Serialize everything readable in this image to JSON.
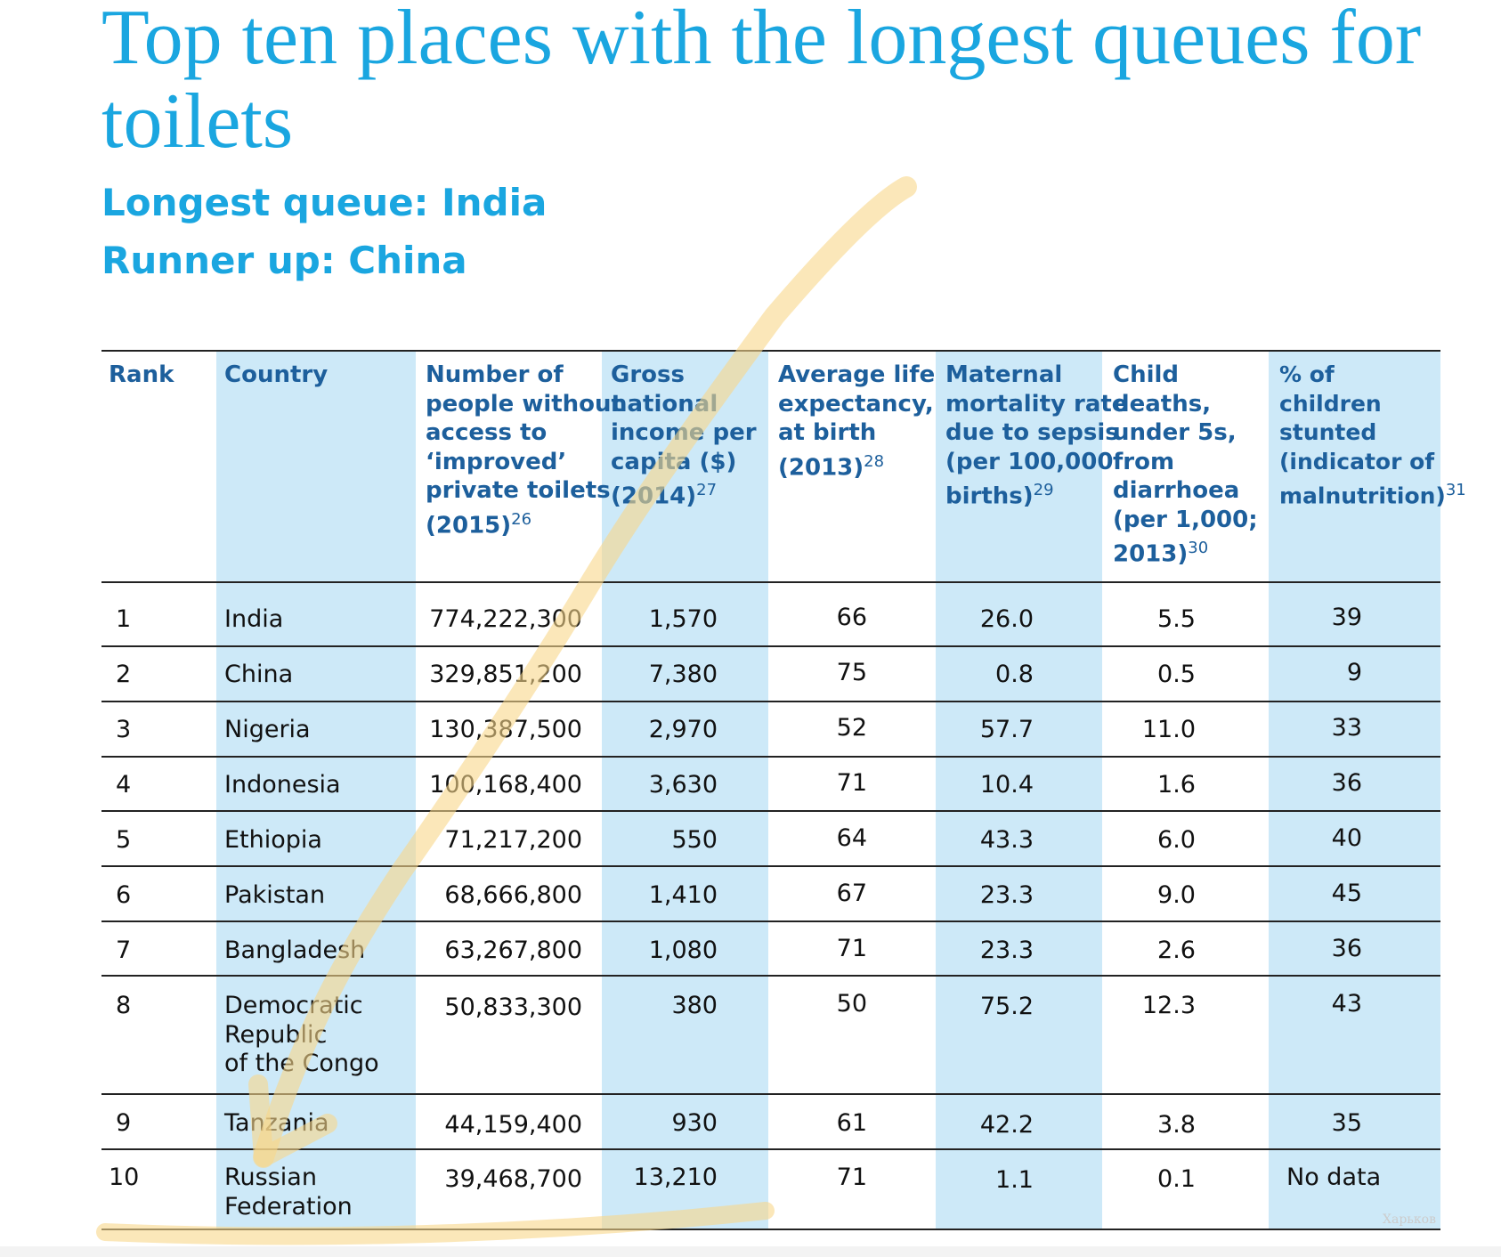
{
  "title": "Top ten places with the longest queues for toilets",
  "subtitle_1": "Longest queue: India",
  "subtitle_2": "Runner up: China",
  "table": {
    "headers": [
      {
        "text": "Rank",
        "sup": ""
      },
      {
        "text": "Country",
        "sup": ""
      },
      {
        "text": "Number of\npeople without\naccess to\n‘improved’\nprivate toilets\n(2015)",
        "sup": "26"
      },
      {
        "text": "Gross\nnational\nincome per\ncapita ($)\n(2014)",
        "sup": "27"
      },
      {
        "text": "Average life\nexpectancy,\nat birth\n(2013)",
        "sup": "28"
      },
      {
        "text": "Maternal\nmortality rate\ndue to sepsis\n(per 100,000\nbirths)",
        "sup": "29"
      },
      {
        "text": "Child\ndeaths,\nunder 5s,\nfrom\ndiarrhoea\n(per 1,000;\n2013)",
        "sup": "30"
      },
      {
        "text": "% of\nchildren\nstunted\n(indicator of\nmalnutrition)",
        "sup": "31"
      }
    ],
    "rows": [
      [
        "1",
        "India",
        "774,222,300",
        "1,570",
        "66",
        "26.0",
        "5.5",
        "39"
      ],
      [
        "2",
        "China",
        "329,851,200",
        "7,380",
        "75",
        "0.8",
        "0.5",
        "9"
      ],
      [
        "3",
        "Nigeria",
        "130,387,500",
        "2,970",
        "52",
        "57.7",
        "11.0",
        "33"
      ],
      [
        "4",
        "Indonesia",
        "100,168,400",
        "3,630",
        "71",
        "10.4",
        "1.6",
        "36"
      ],
      [
        "5",
        "Ethiopia",
        "71,217,200",
        "550",
        "64",
        "43.3",
        "6.0",
        "40"
      ],
      [
        "6",
        "Pakistan",
        "68,666,800",
        "1,410",
        "67",
        "23.3",
        "9.0",
        "45"
      ],
      [
        "7",
        "Bangladesh",
        "63,267,800",
        "1,080",
        "71",
        "23.3",
        "2.6",
        "36"
      ],
      [
        "8",
        "Democratic\nRepublic\nof the Congo",
        "50,833,300",
        "380",
        "50",
        "75.2",
        "12.3",
        "43"
      ],
      [
        "9",
        "Tanzania",
        "44,159,400",
        "930",
        "61",
        "42.2",
        "3.8",
        "35"
      ],
      [
        "10",
        "Russian\nFederation",
        "39,468,700",
        "13,210",
        "71",
        "1.1",
        "0.1",
        "No data"
      ]
    ]
  },
  "watermark": "Харьков",
  "colors": {
    "title": "#1aa6e0",
    "header_text": "#1d5f9c",
    "stripe": "#cde9f8",
    "highlight": "#f8d78a"
  }
}
